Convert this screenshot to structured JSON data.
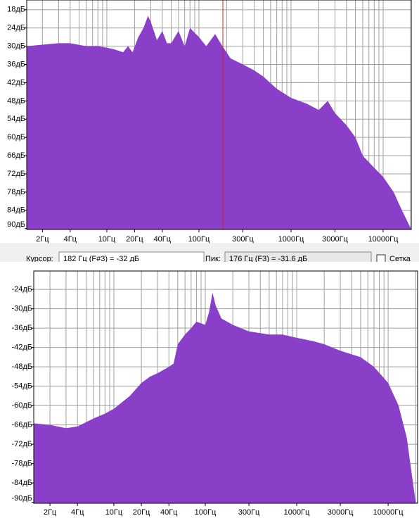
{
  "chart_data": [
    {
      "type": "area",
      "color": "#8a3fc8",
      "log_x": true,
      "grid": true,
      "xlim": [
        1.35,
        20200
      ],
      "ylim": [
        -90.3,
        -14.8
      ],
      "yticks": [
        {
          "value": -18,
          "label": "18дБ"
        },
        {
          "value": -24,
          "label": "24дБ"
        },
        {
          "value": -30,
          "label": "30дБ"
        },
        {
          "value": -36,
          "label": "36дБ"
        },
        {
          "value": -42,
          "label": "42дБ"
        },
        {
          "value": -48,
          "label": "48дБ"
        },
        {
          "value": -54,
          "label": "54дБ"
        },
        {
          "value": -60,
          "label": "60дБ"
        },
        {
          "value": -66,
          "label": "66дБ"
        },
        {
          "value": -72,
          "label": "72дБ"
        },
        {
          "value": -78,
          "label": "78дБ"
        },
        {
          "value": -84,
          "label": "84дБ"
        },
        {
          "value": -90,
          "label": "90дБ"
        }
      ],
      "xticks": [
        {
          "value": 2,
          "label": "2Гц"
        },
        {
          "value": 4,
          "label": "4Гц"
        },
        {
          "value": 10,
          "label": "10Гц"
        },
        {
          "value": 20,
          "label": "20Гц"
        },
        {
          "value": 40,
          "label": "40Гц"
        },
        {
          "value": 100,
          "label": "100Гц"
        },
        {
          "value": 300,
          "label": "300Гц"
        },
        {
          "value": 1000,
          "label": "1000Гц"
        },
        {
          "value": 3000,
          "label": "3000Гц"
        },
        {
          "value": 10000,
          "label": "10000Гц"
        }
      ],
      "xgrid": [
        2,
        3,
        4,
        5,
        6,
        7,
        8,
        9,
        10,
        20,
        30,
        40,
        50,
        60,
        70,
        80,
        90,
        100,
        200,
        300,
        400,
        500,
        600,
        700,
        800,
        900,
        1000,
        2000,
        3000,
        4000,
        5000,
        6000,
        7000,
        8000,
        9000,
        10000,
        20000
      ],
      "cursor": {
        "value": 182,
        "color": "#cc2222"
      },
      "x": [
        1.35,
        2,
        3,
        4,
        6,
        8,
        10,
        12,
        15,
        17,
        19,
        22,
        25,
        28,
        30,
        35,
        40,
        45,
        50,
        60,
        70,
        80,
        100,
        120,
        150,
        180,
        220,
        300,
        400,
        500,
        700,
        1000,
        1500,
        2000,
        2500,
        3000,
        4000,
        5000,
        6000,
        8000,
        10000,
        13000,
        16000,
        20000
      ],
      "values": [
        -30,
        -29.5,
        -29,
        -29,
        -30,
        -30,
        -30.5,
        -31,
        -32,
        -30,
        -32,
        -27,
        -24,
        -20,
        -22,
        -28,
        -25,
        -29,
        -29,
        -25,
        -30,
        -24,
        -27,
        -30,
        -26,
        -30,
        -34,
        -36,
        -38,
        -40,
        -44,
        -47,
        -49,
        -51,
        -48,
        -52,
        -56,
        -60,
        -66,
        -70,
        -73,
        -78,
        -84,
        -90
      ]
    },
    {
      "type": "area",
      "color": "#8a3fc8",
      "log_x": true,
      "grid": true,
      "xlim": [
        1.33,
        21000
      ],
      "ylim": [
        -90.3,
        -18.3
      ],
      "yticks": [
        {
          "value": -24,
          "label": "-24дБ"
        },
        {
          "value": -30,
          "label": "-30дБ"
        },
        {
          "value": -36,
          "label": "-36дБ"
        },
        {
          "value": -42,
          "label": "-42дБ"
        },
        {
          "value": -48,
          "label": "-48дБ"
        },
        {
          "value": -54,
          "label": "-54дБ"
        },
        {
          "value": -60,
          "label": "-60дБ"
        },
        {
          "value": -66,
          "label": "-66дБ"
        },
        {
          "value": -72,
          "label": "-72дБ"
        },
        {
          "value": -78,
          "label": "-78дБ"
        },
        {
          "value": -84,
          "label": "-84дБ"
        },
        {
          "value": -90,
          "label": "-90дБ"
        }
      ],
      "xticks": [
        {
          "value": 2,
          "label": "2Гц"
        },
        {
          "value": 4,
          "label": "4Гц"
        },
        {
          "value": 10,
          "label": "10Гц"
        },
        {
          "value": 20,
          "label": "20Гц"
        },
        {
          "value": 40,
          "label": "40Гц"
        },
        {
          "value": 100,
          "label": "100Гц"
        },
        {
          "value": 300,
          "label": "300Гц"
        },
        {
          "value": 1000,
          "label": "1000Гц"
        },
        {
          "value": 3000,
          "label": "3000Гц"
        },
        {
          "value": 10000,
          "label": "10000Гц"
        }
      ],
      "xgrid": [
        2,
        3,
        4,
        5,
        6,
        7,
        8,
        9,
        10,
        20,
        30,
        40,
        50,
        60,
        70,
        80,
        90,
        100,
        200,
        300,
        400,
        500,
        600,
        700,
        800,
        900,
        1000,
        2000,
        3000,
        4000,
        5000,
        6000,
        7000,
        8000,
        9000,
        10000,
        20000
      ],
      "x": [
        1.33,
        2,
        3,
        4,
        6,
        8,
        10,
        15,
        20,
        25,
        30,
        40,
        45,
        50,
        60,
        70,
        80,
        100,
        110,
        120,
        130,
        150,
        200,
        300,
        500,
        700,
        1000,
        1500,
        2000,
        3000,
        5000,
        7000,
        10000,
        13000,
        16000,
        20000
      ],
      "values": [
        -65.5,
        -66,
        -67,
        -66.5,
        -64,
        -62.5,
        -61,
        -57,
        -53,
        -51,
        -50,
        -48,
        -47,
        -41,
        -38,
        -36,
        -34,
        -35,
        -31,
        -25,
        -29,
        -33,
        -35,
        -37,
        -38,
        -38,
        -39,
        -40,
        -41,
        -43,
        -45,
        -48,
        -53,
        -60,
        -70,
        -90
      ]
    }
  ],
  "status_bar": {
    "cursor_label": "Курсор:",
    "cursor_value": "182 Гц (F#3) = -32 дБ",
    "peak_label": "Пик:",
    "peak_value": "176 Гц (F3) = -31.6 дБ",
    "grid_label": "Сетка"
  }
}
